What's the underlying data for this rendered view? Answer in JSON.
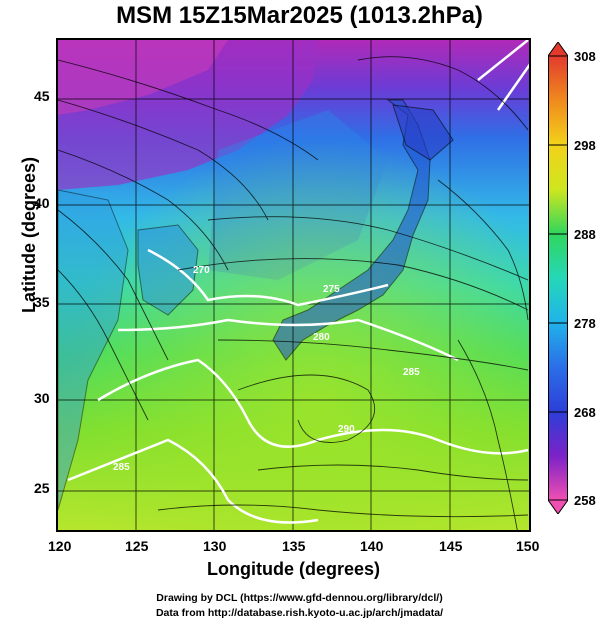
{
  "title": "MSM 15Z15Mar2025 (1013.2hPa)",
  "axes": {
    "xlabel": "Longitude (degrees)",
    "ylabel": "Latitude  (degrees)",
    "x_ticks": [
      "120",
      "125",
      "130",
      "135",
      "140",
      "145",
      "150"
    ],
    "y_ticks": [
      "45",
      "40",
      "35",
      "30",
      "25"
    ]
  },
  "colorbar": {
    "labels": [
      "308",
      "298",
      "288",
      "278",
      "268",
      "258"
    ],
    "colors": [
      "#e23b2e",
      "#f08a1d",
      "#f3d21b",
      "#cfe61f",
      "#7fe02a",
      "#31d65c",
      "#25d7b8",
      "#20b3ea",
      "#2b6fe8",
      "#2c3fd9",
      "#7b22c8",
      "#d12ec6",
      "#f04fb2"
    ]
  },
  "contour_labels": [
    "270",
    "275",
    "280",
    "285",
    "290",
    "285"
  ],
  "credits": {
    "line1": "Drawing by DCL (https://www.gfd-dennou.org/library/dcl/)",
    "line2": "Data from http://database.rish.kyoto-u.ac.jp/arch/jmadata/"
  }
}
